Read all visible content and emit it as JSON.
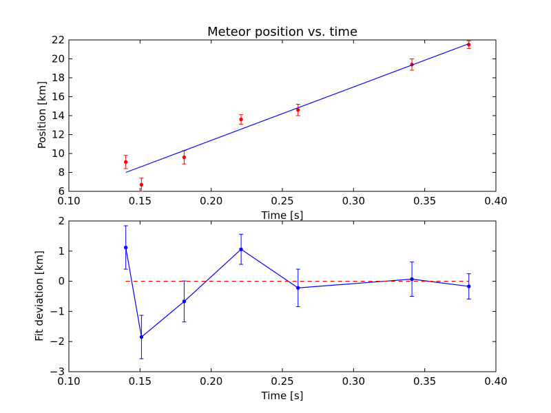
{
  "chart_data": [
    {
      "type": "scatter",
      "title": "Meteor position vs. time",
      "xlabel": "Time [s]",
      "ylabel": "Position [km]",
      "xlim": [
        0.1,
        0.4
      ],
      "ylim": [
        6,
        22
      ],
      "xticks": [
        "0.10",
        "0.15",
        "0.20",
        "0.25",
        "0.30",
        "0.35",
        "0.40"
      ],
      "yticks": [
        "6",
        "8",
        "10",
        "12",
        "14",
        "16",
        "18",
        "20",
        "22"
      ],
      "grid": false,
      "series": [
        {
          "kind": "errorbar",
          "color": "#ff0000",
          "x": [
            0.14,
            0.151,
            0.181,
            0.221,
            0.261,
            0.341,
            0.381
          ],
          "y": [
            9.1,
            6.7,
            9.6,
            13.6,
            14.6,
            19.4,
            21.5
          ],
          "yerr": [
            0.7,
            0.7,
            0.7,
            0.5,
            0.6,
            0.6,
            0.4
          ]
        },
        {
          "kind": "line",
          "color": "#0000ff",
          "x": [
            0.14,
            0.381
          ],
          "y": [
            8.0,
            21.6
          ]
        }
      ]
    },
    {
      "type": "line",
      "title": "",
      "xlabel": "Time [s]",
      "ylabel": "Fit deviation [km]",
      "xlim": [
        0.1,
        0.4
      ],
      "ylim": [
        -3,
        2
      ],
      "xticks": [
        "0.10",
        "0.15",
        "0.20",
        "0.25",
        "0.30",
        "0.35",
        "0.40"
      ],
      "yticks": [
        "−3",
        "−2",
        "−1",
        "0",
        "1",
        "2"
      ],
      "grid": false,
      "series": [
        {
          "kind": "errorbar-line",
          "color": "#0000ff",
          "x": [
            0.14,
            0.151,
            0.181,
            0.221,
            0.261,
            0.341,
            0.381
          ],
          "y": [
            1.12,
            -1.85,
            -0.67,
            1.06,
            -0.22,
            0.07,
            -0.17
          ],
          "yerr": [
            0.72,
            0.72,
            0.68,
            0.5,
            0.62,
            0.57,
            0.42
          ]
        },
        {
          "kind": "dashed-line",
          "color": "#ff0000",
          "x": [
            0.14,
            0.381
          ],
          "y": [
            0,
            0
          ]
        }
      ]
    }
  ]
}
